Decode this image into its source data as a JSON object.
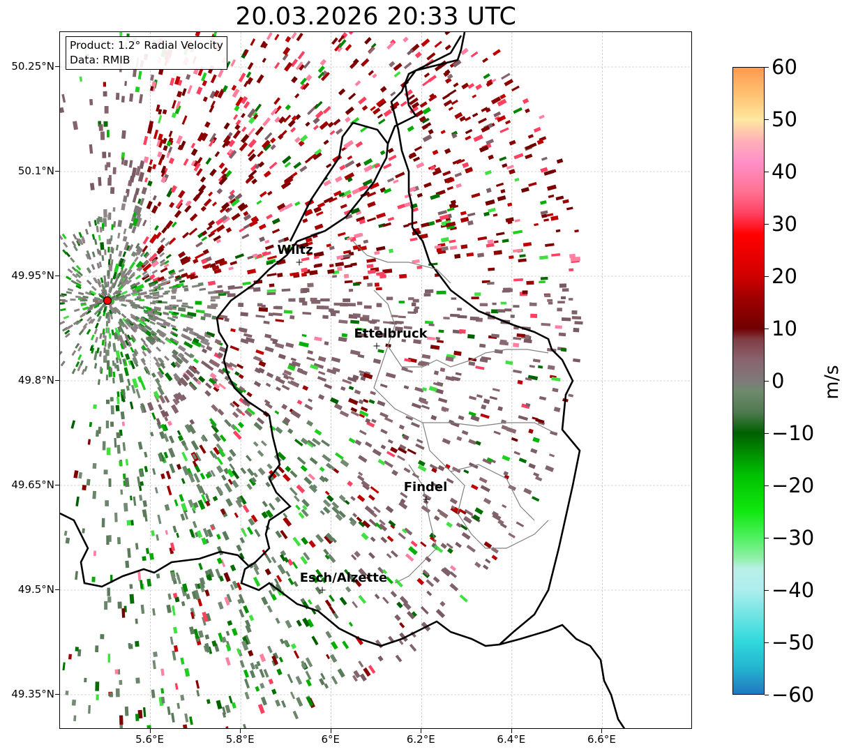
{
  "title": "20.03.2026 20:33 UTC",
  "info": {
    "product": "Product: 1.2° Radial Velocity",
    "data": "Data: RMIB"
  },
  "map": {
    "extent": {
      "lon_min": 5.4,
      "lon_max": 6.8,
      "lat_min": 49.3,
      "lat_max": 50.3
    },
    "y_ticks": [
      {
        "lat": 50.25,
        "label": "50.25°N"
      },
      {
        "lat": 50.1,
        "label": "50.1°N"
      },
      {
        "lat": 49.95,
        "label": "49.95°N"
      },
      {
        "lat": 49.8,
        "label": "49.8°N"
      },
      {
        "lat": 49.65,
        "label": "49.65°N"
      },
      {
        "lat": 49.5,
        "label": "49.5°N"
      },
      {
        "lat": 49.35,
        "label": "49.35°N"
      }
    ],
    "x_ticks": [
      {
        "lon": 5.6,
        "label": "5.6°E"
      },
      {
        "lon": 5.8,
        "label": "5.8°E"
      },
      {
        "lon": 6.0,
        "label": "6°E"
      },
      {
        "lon": 6.2,
        "label": "6.2°E"
      },
      {
        "lon": 6.4,
        "label": "6.4°E"
      },
      {
        "lon": 6.6,
        "label": "6.6°E"
      }
    ],
    "radar": {
      "lon": 5.505,
      "lat": 49.915
    },
    "cities": [
      {
        "name": "Wiltz",
        "lon": 5.93,
        "lat": 49.97
      },
      {
        "name": "Ettelbruck",
        "lon": 6.1,
        "lat": 49.85
      },
      {
        "name": "Findel",
        "lon": 6.21,
        "lat": 49.63
      },
      {
        "name": "Esch/Alzette",
        "lon": 5.98,
        "lat": 49.5
      }
    ],
    "colors": {
      "border": "#000000",
      "admin_border": "#808080",
      "grid": "#b0b0b0",
      "radar": "#ff0000"
    }
  },
  "colorbar": {
    "unit": "m/s",
    "vmin": -60,
    "vmax": 60,
    "ticks": [
      {
        "value": 60,
        "label": "60"
      },
      {
        "value": 50,
        "label": "50"
      },
      {
        "value": 40,
        "label": "40"
      },
      {
        "value": 30,
        "label": "30"
      },
      {
        "value": 20,
        "label": "20"
      },
      {
        "value": 10,
        "label": "10"
      },
      {
        "value": 0,
        "label": "0"
      },
      {
        "value": -10,
        "label": "−10"
      },
      {
        "value": -20,
        "label": "−20"
      },
      {
        "value": -30,
        "label": "−30"
      },
      {
        "value": -40,
        "label": "−40"
      },
      {
        "value": -50,
        "label": "−50"
      },
      {
        "value": -60,
        "label": "−60"
      }
    ],
    "stops": [
      {
        "value": -60,
        "color": "#1f78c0"
      },
      {
        "value": -55,
        "color": "#25b4d0"
      },
      {
        "value": -50,
        "color": "#30d8dc"
      },
      {
        "value": -45,
        "color": "#6ee4e4"
      },
      {
        "value": -40,
        "color": "#aeeeee"
      },
      {
        "value": -36,
        "color": "#b8f0e8"
      },
      {
        "value": -34,
        "color": "#90f0a8"
      },
      {
        "value": -30,
        "color": "#50f060"
      },
      {
        "value": -25,
        "color": "#10e810"
      },
      {
        "value": -18,
        "color": "#00c000"
      },
      {
        "value": -10,
        "color": "#006000"
      },
      {
        "value": -6,
        "color": "#4f7a4f"
      },
      {
        "value": -2,
        "color": "#6e8a6e"
      },
      {
        "value": 0,
        "color": "#7e7a7a"
      },
      {
        "value": 4,
        "color": "#8a6470"
      },
      {
        "value": 8,
        "color": "#803c44"
      },
      {
        "value": 10,
        "color": "#700000"
      },
      {
        "value": 16,
        "color": "#a00000"
      },
      {
        "value": 20,
        "color": "#d00000"
      },
      {
        "value": 28,
        "color": "#ff0000"
      },
      {
        "value": 32,
        "color": "#ff4060"
      },
      {
        "value": 36,
        "color": "#ff7090"
      },
      {
        "value": 42,
        "color": "#ff90c8"
      },
      {
        "value": 46,
        "color": "#ffb0b8"
      },
      {
        "value": 50,
        "color": "#ffe8a0"
      },
      {
        "value": 55,
        "color": "#ffc070"
      },
      {
        "value": 60,
        "color": "#ff9a50"
      }
    ]
  }
}
